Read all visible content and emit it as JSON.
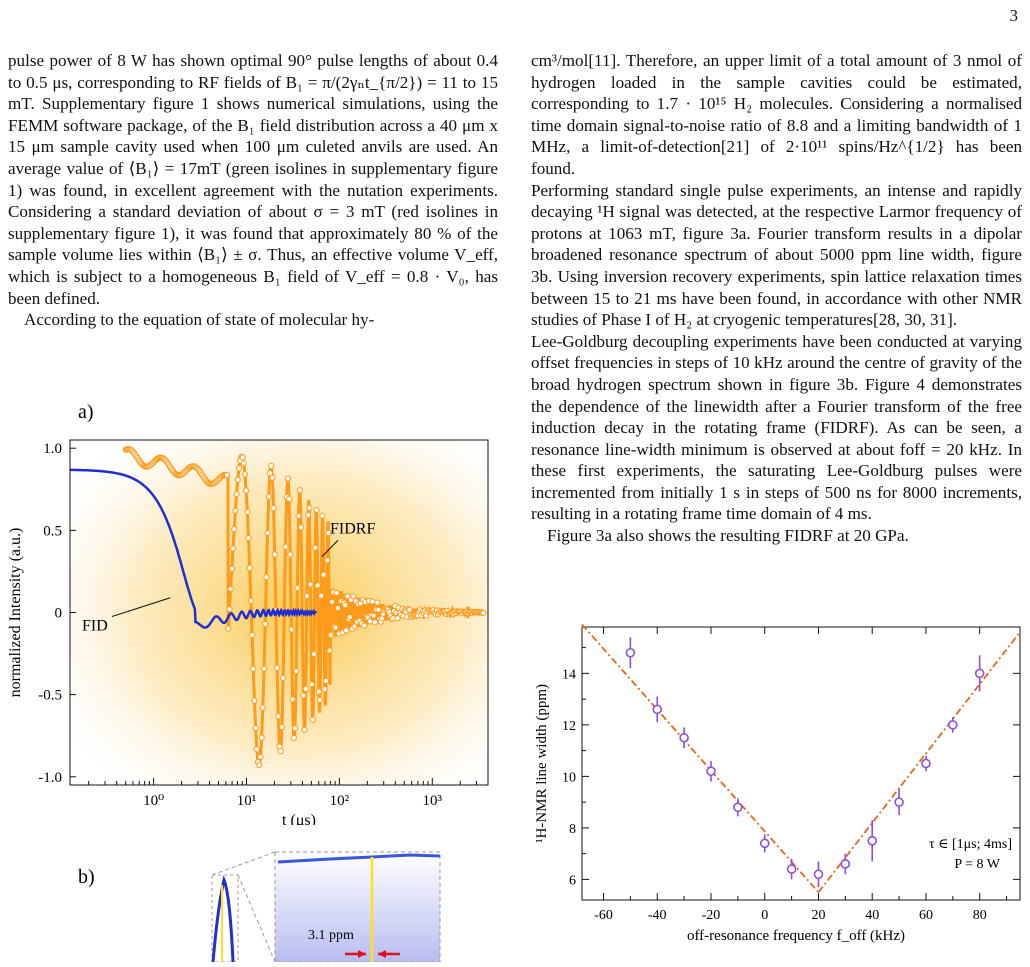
{
  "page_number": "3",
  "left_column": {
    "paragraph_1": "pulse power of 8 W has shown optimal 90° pulse lengths of about 0.4 to 0.5 μs, corresponding to RF fields of B₁ = π/(2γₙt_{π/2}) = 11 to 15 mT. Supplementary figure 1 shows numerical simulations, using the FEMM software package, of the B₁ field distribution across a 40 μm x 15 μm sample cavity used when 100 μm culeted anvils are used. An average value of ⟨B₁⟩ = 17mT (green isolines in supplementary figure 1) was found, in excellent agreement with the nutation experiments. Considering a standard deviation of about σ = 3 mT (red isolines in supplementary figure 1), it was found that approximately 80 % of the sample volume lies within ⟨B₁⟩ ± σ. Thus, an effective volume V_eff, which is subject to a homogeneous B₁ field of V_eff = 0.8 · V₀, has been defined.",
    "paragraph_2": "According to the equation of state of molecular hy-"
  },
  "right_column": {
    "paragraph_1": "cm³/mol[11]. Therefore, an upper limit of a total amount of 3 nmol of hydrogen loaded in the sample cavities could be estimated, corresponding to 1.7 · 10¹⁵ H₂ molecules. Considering a normalised time domain signal-to-noise ratio of 8.8 and a limiting bandwidth of 1 MHz, a limit-of-detection[21] of 2·10¹¹ spins/Hz^{1/2} has been found.",
    "paragraph_2": "Performing standard single pulse experiments, an intense and rapidly decaying ¹H signal was detected, at the respective Larmor frequency of protons at 1063 mT, figure 3a. Fourier transform results in a dipolar broadened resonance spectrum of about 5000 ppm line width, figure 3b. Using inversion recovery experiments, spin lattice relaxation times between 15 to 21 ms have been found, in accordance with other NMR studies of Phase I of H₂ at cryogenic temperatures[28, 30, 31].",
    "paragraph_3": "Lee-Goldburg decoupling experiments have been conducted at varying offset frequencies in steps of 10 kHz around the centre of gravity of the broad hydrogen spectrum shown in figure 3b. Figure 4 demonstrates the dependence of the linewidth after a Fourier transform of the free induction decay in the rotating frame (FIDRF). As can be seen, a resonance line-width minimum is observed at about foff = 20 kHz. In these first experiments, the saturating Lee-Goldburg pulses were incremented from initially 1 s in steps of 500 ns for 8000 increments, resulting in a rotating frame time domain of 4 ms.",
    "paragraph_4": "Figure 3a also shows the resulting FIDRF at 20 GPa."
  },
  "figure_3a": {
    "panel_label": "a)",
    "ylabel": "normalized Intensity (a.u.)",
    "xlabel": "t (μs)",
    "yticks": [
      "1.0",
      "0.5",
      "0",
      "-0.5",
      "-1.0"
    ],
    "xticks": [
      "10⁰",
      "10¹",
      "10²",
      "10³"
    ],
    "annotation_fidrf": "FIDRF",
    "annotation_fid": "FID",
    "colors": {
      "fid": "#1f2fd0",
      "fidrf": "#ff9a1a",
      "glow": "#f9c84a"
    }
  },
  "figure_3b": {
    "panel_label": "b)",
    "annotation": "3.1 ppm"
  },
  "chart_data": {
    "type": "scatter",
    "title": "",
    "xlabel": "off-resonance frequency f_off (kHz)",
    "ylabel": "¹H-NMR line width (ppm)",
    "xlim": [
      -68,
      95
    ],
    "ylim": [
      5.2,
      15.8
    ],
    "xticks": [
      -60,
      -40,
      -20,
      0,
      20,
      40,
      60,
      80
    ],
    "yticks": [
      6,
      8,
      10,
      12,
      14
    ],
    "series": [
      {
        "x": [
          -50,
          -40,
          -30,
          -20,
          -10,
          0,
          10,
          20,
          30,
          40,
          50,
          60,
          70,
          80
        ],
        "y": [
          14.8,
          12.6,
          11.5,
          10.2,
          8.8,
          7.4,
          6.4,
          6.2,
          6.6,
          7.5,
          9.0,
          10.5,
          12.0,
          14.0
        ],
        "error": [
          0.6,
          0.5,
          0.4,
          0.4,
          0.35,
          0.35,
          0.4,
          0.5,
          0.4,
          0.8,
          0.5,
          0.3,
          0.3,
          0.7
        ]
      }
    ],
    "fit_lines": [
      {
        "x": [
          -68,
          20
        ],
        "y": [
          15.9,
          5.5
        ]
      },
      {
        "x": [
          20,
          95
        ],
        "y": [
          5.5,
          15.6
        ]
      }
    ],
    "legend_lines": [
      "τ ∈ [1μs; 4ms]",
      "P = 8 W"
    ],
    "marker_color": "#8a4fe0",
    "fit_color": "#e8641e",
    "grid": false
  }
}
